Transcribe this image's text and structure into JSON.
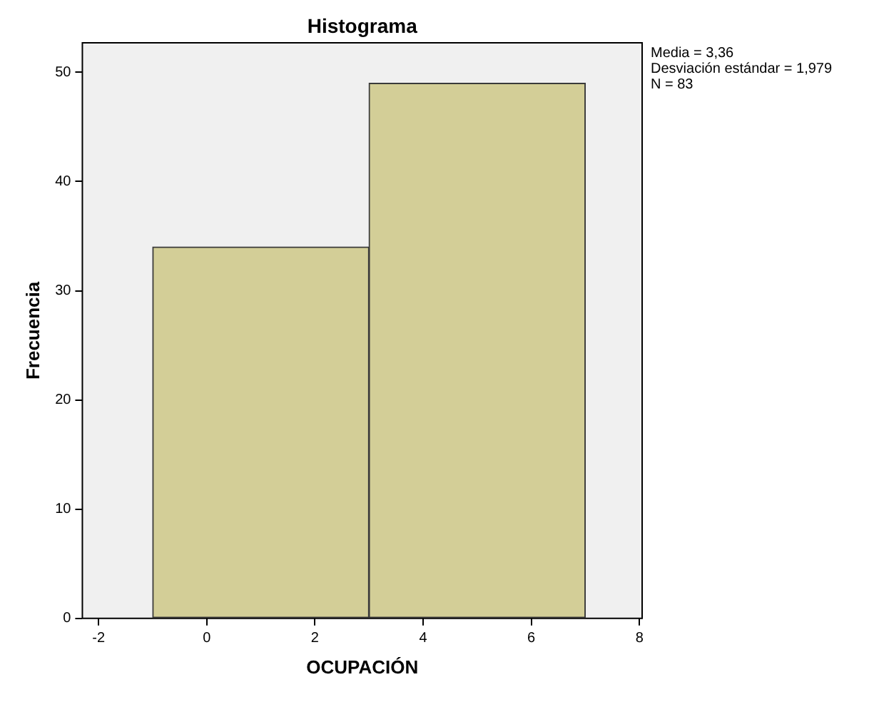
{
  "chart_data": {
    "type": "histogram",
    "title": "Histograma",
    "xlabel": "OCUPACIÓN",
    "ylabel": "Frecuencia",
    "bins": [
      -1,
      3,
      7
    ],
    "values": [
      34,
      49
    ],
    "color": "#d3ce97",
    "xlim": [
      -2.3,
      8.05
    ],
    "xticks": [
      -2,
      0,
      2,
      4,
      6,
      8
    ],
    "ylim": [
      0,
      52.7
    ],
    "yticks": [
      0,
      10,
      20,
      30,
      40,
      50
    ],
    "grid": false,
    "legend": false,
    "annotations": [
      "Media = 3,36",
      "Desviación estándar = 1,979",
      "N = 83"
    ]
  }
}
